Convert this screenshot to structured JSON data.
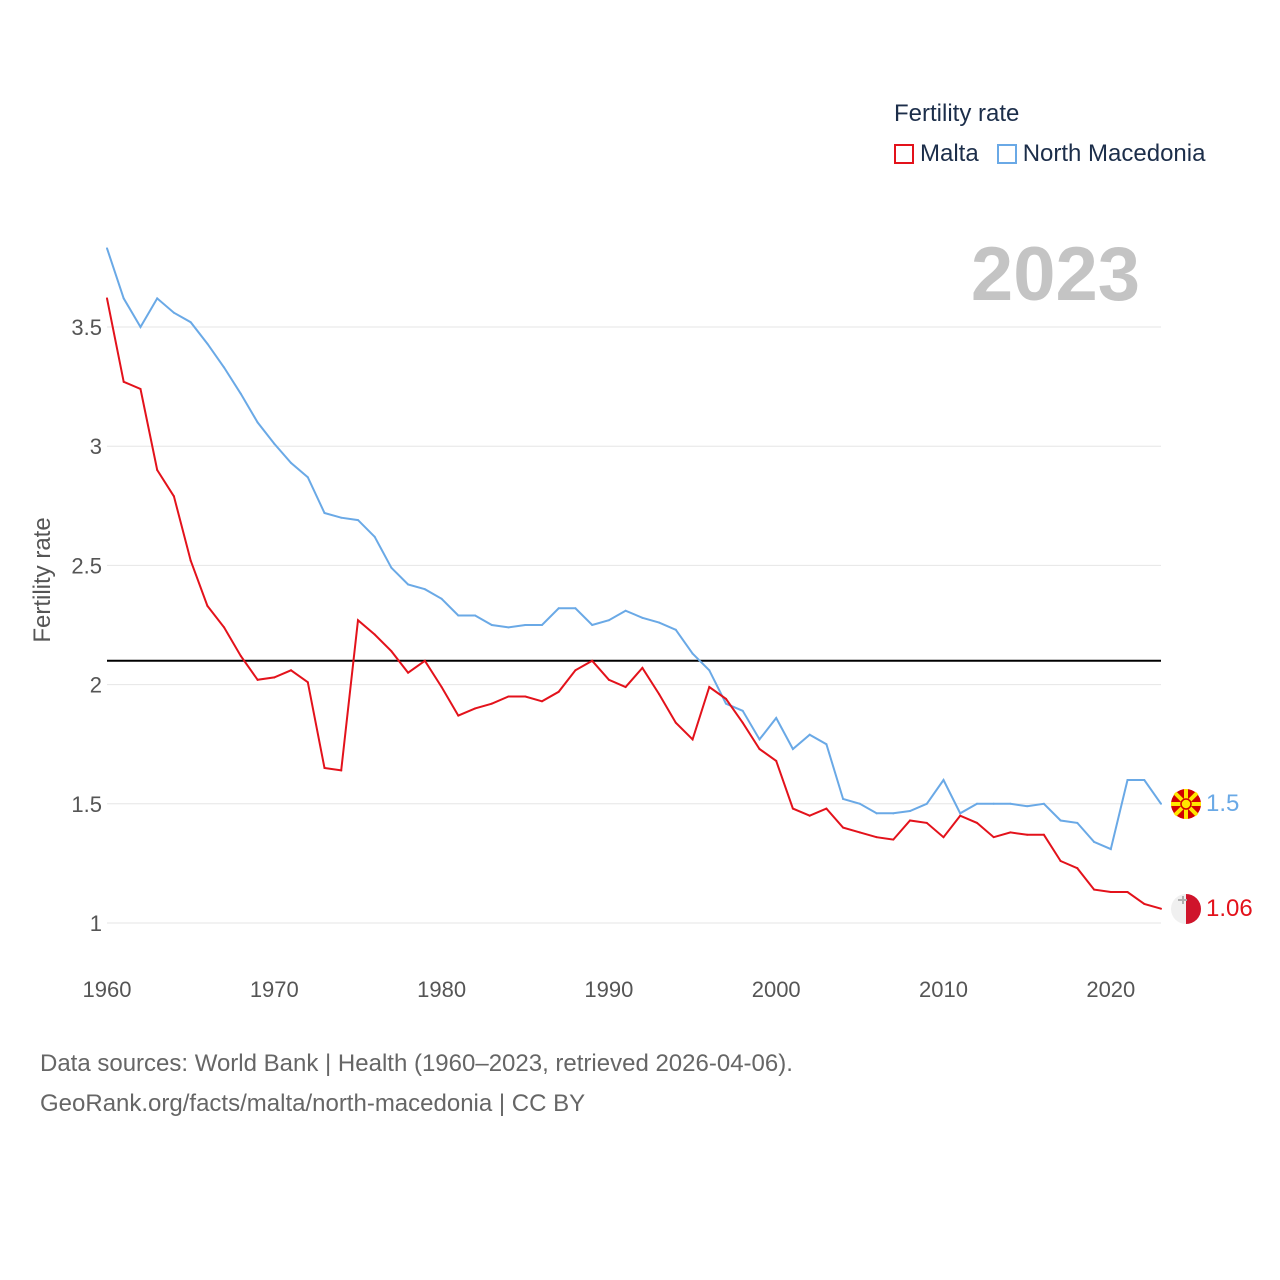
{
  "legend": {
    "title": "Fertility rate",
    "items": [
      {
        "label": "Malta",
        "color": "#e3121b"
      },
      {
        "label": "North Macedonia",
        "color": "#6aa9e6"
      }
    ]
  },
  "year_label": "2023",
  "end_labels": {
    "malta": "1.06",
    "north_macedonia": "1.5"
  },
  "footer": {
    "sources": "Data sources: World Bank | Health (1960–2023, retrieved 2026-04-06).",
    "link": "GeoRank.org/facts/malta/north-macedonia | CC BY"
  },
  "chart_data": {
    "type": "line",
    "title": "",
    "xlabel": "",
    "ylabel": "Fertility rate",
    "xlim": [
      1960,
      2023
    ],
    "ylim": [
      0.9,
      3.85
    ],
    "x_ticks": [
      1960,
      1970,
      1980,
      1990,
      2000,
      2010,
      2020
    ],
    "y_ticks": [
      1,
      1.5,
      2,
      2.5,
      3,
      3.5
    ],
    "y_tick_labels": [
      "1",
      "1.5",
      "2",
      "2.5",
      "3",
      "3.5"
    ],
    "x_tick_labels": [
      "1960",
      "1970",
      "1980",
      "1990",
      "2000",
      "2010",
      "2020"
    ],
    "reference_line": {
      "y": 2.1
    },
    "x": [
      1960,
      1961,
      1962,
      1963,
      1964,
      1965,
      1966,
      1967,
      1968,
      1969,
      1970,
      1971,
      1972,
      1973,
      1974,
      1975,
      1976,
      1977,
      1978,
      1979,
      1980,
      1981,
      1982,
      1983,
      1984,
      1985,
      1986,
      1987,
      1988,
      1989,
      1990,
      1991,
      1992,
      1993,
      1994,
      1995,
      1996,
      1997,
      1998,
      1999,
      2000,
      2001,
      2002,
      2003,
      2004,
      2005,
      2006,
      2007,
      2008,
      2009,
      2010,
      2011,
      2012,
      2013,
      2014,
      2015,
      2016,
      2017,
      2018,
      2019,
      2020,
      2021,
      2022,
      2023
    ],
    "series": [
      {
        "name": "Malta",
        "color": "#e3121b",
        "values": [
          3.62,
          3.27,
          3.24,
          2.9,
          2.79,
          2.52,
          2.33,
          2.24,
          2.12,
          2.02,
          2.03,
          2.06,
          2.01,
          1.65,
          1.64,
          2.27,
          2.21,
          2.14,
          2.05,
          2.1,
          1.99,
          1.87,
          1.9,
          1.92,
          1.95,
          1.95,
          1.93,
          1.97,
          2.06,
          2.1,
          2.02,
          1.99,
          2.07,
          1.96,
          1.84,
          1.77,
          1.99,
          1.94,
          1.84,
          1.73,
          1.68,
          1.48,
          1.45,
          1.48,
          1.4,
          1.38,
          1.36,
          1.35,
          1.43,
          1.42,
          1.36,
          1.45,
          1.42,
          1.36,
          1.38,
          1.37,
          1.37,
          1.26,
          1.23,
          1.14,
          1.13,
          1.13,
          1.08,
          1.06
        ]
      },
      {
        "name": "North Macedonia",
        "color": "#6aa9e6",
        "values": [
          3.83,
          3.62,
          3.5,
          3.62,
          3.56,
          3.52,
          3.43,
          3.33,
          3.22,
          3.1,
          3.01,
          2.93,
          2.87,
          2.72,
          2.7,
          2.69,
          2.62,
          2.49,
          2.42,
          2.4,
          2.36,
          2.29,
          2.29,
          2.25,
          2.24,
          2.25,
          2.25,
          2.32,
          2.32,
          2.25,
          2.27,
          2.31,
          2.28,
          2.26,
          2.23,
          2.13,
          2.06,
          1.92,
          1.89,
          1.77,
          1.86,
          1.73,
          1.79,
          1.75,
          1.52,
          1.5,
          1.46,
          1.46,
          1.47,
          1.5,
          1.6,
          1.46,
          1.5,
          1.5,
          1.5,
          1.49,
          1.5,
          1.43,
          1.42,
          1.34,
          1.31,
          1.6,
          1.6,
          1.5
        ]
      }
    ]
  }
}
